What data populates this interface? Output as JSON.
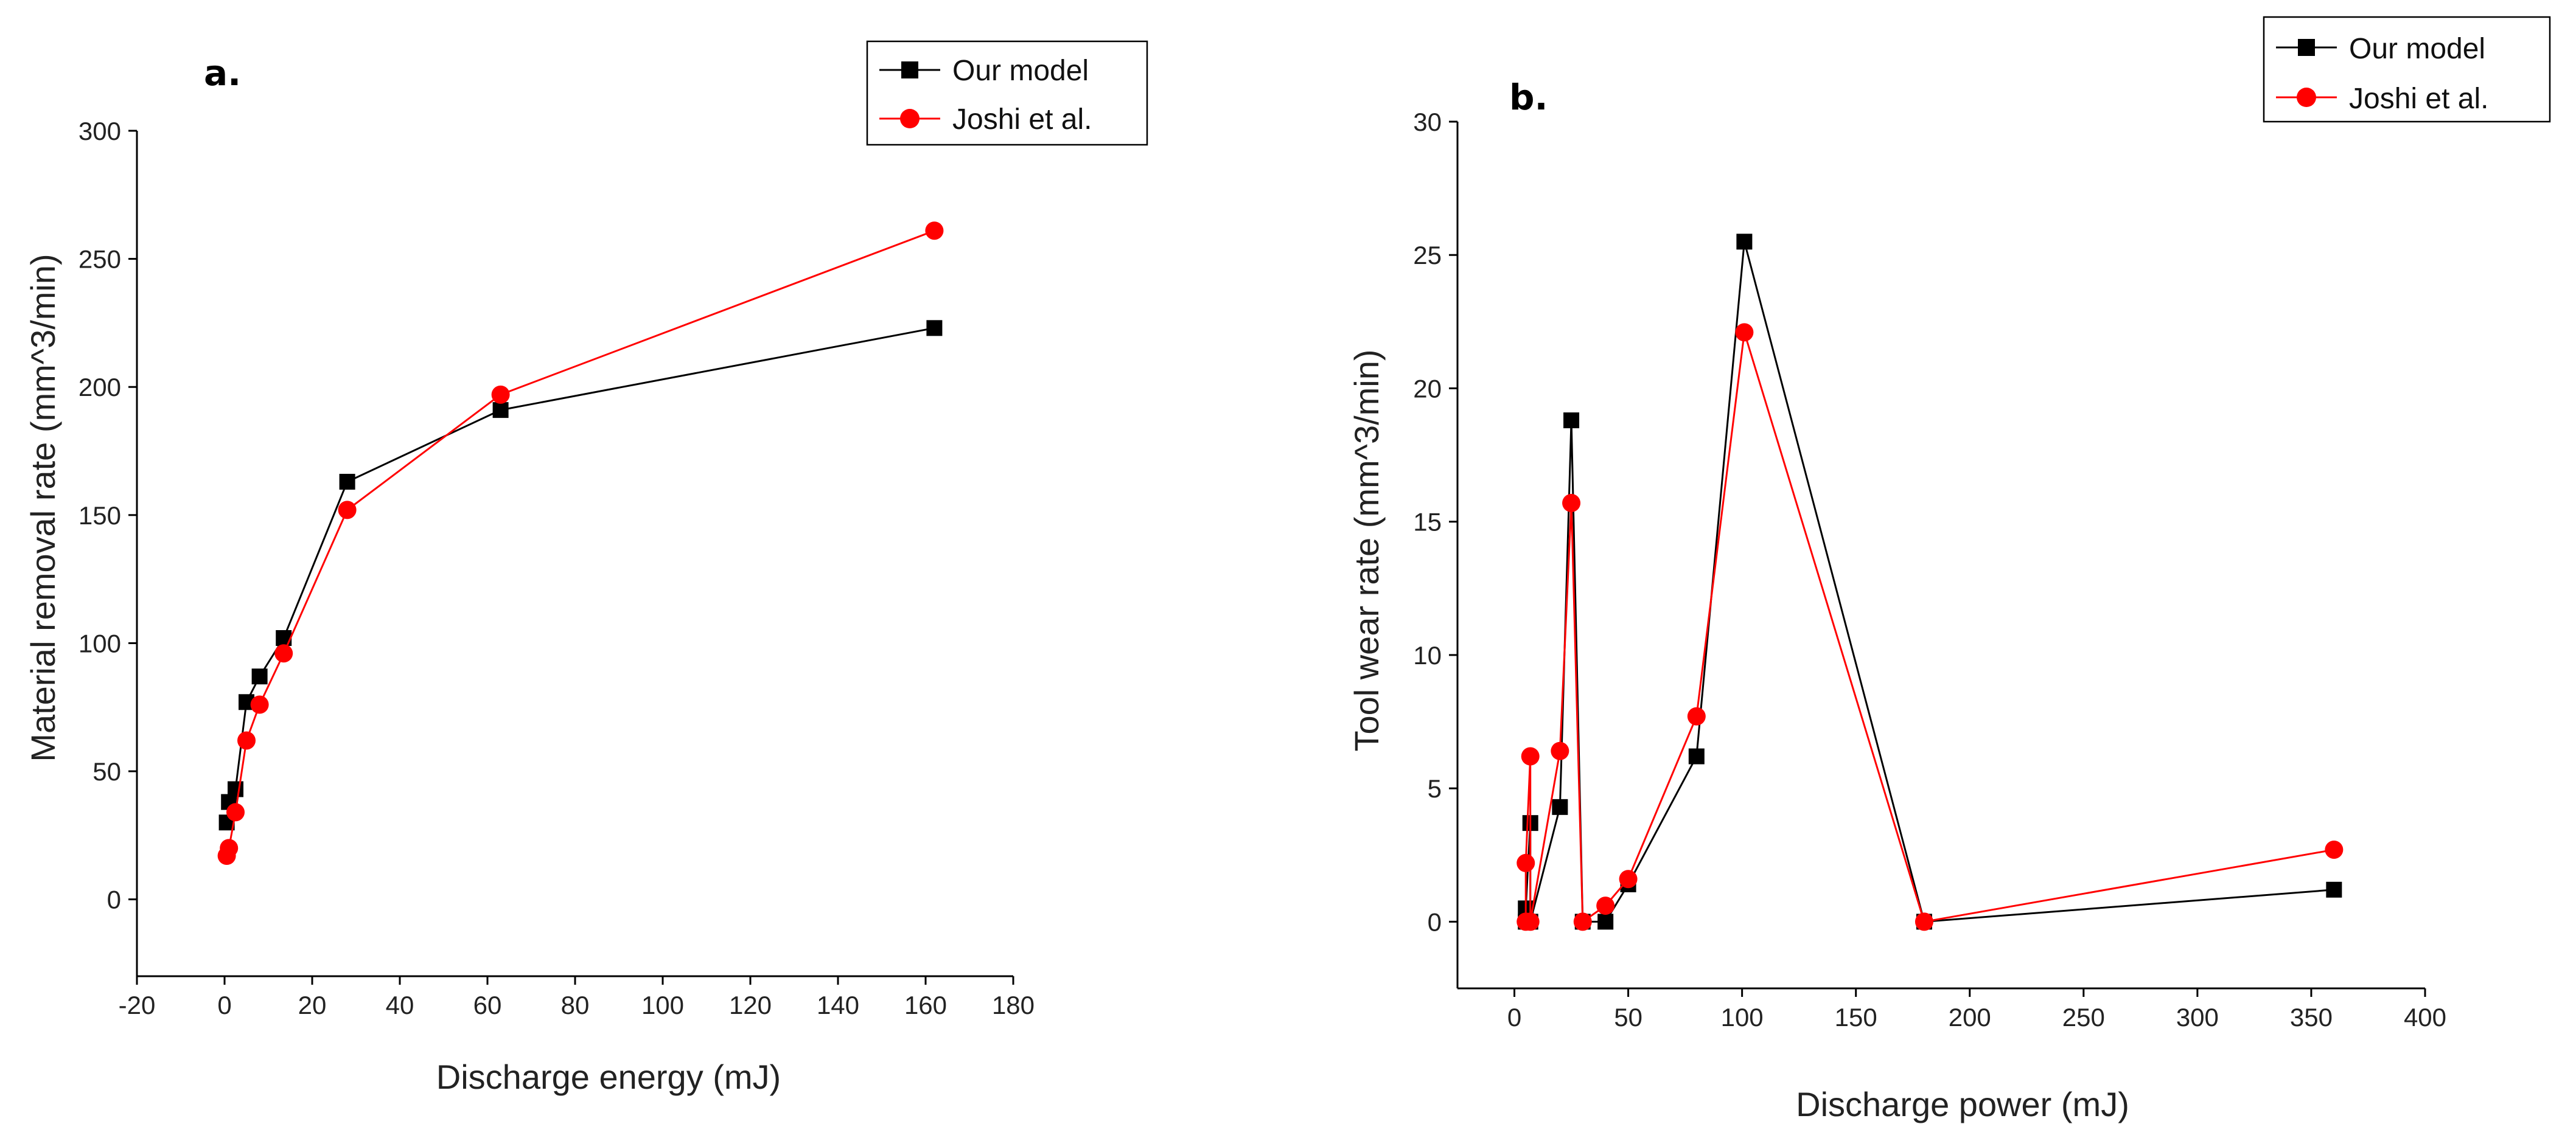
{
  "chart_data": [
    {
      "panel_label": "a.",
      "type": "line",
      "xlabel": "Discharge energy (mJ)",
      "ylabel": "Material removal rate (mm^3/min)",
      "xlim": [
        -20,
        180
      ],
      "ylim": [
        -30,
        300
      ],
      "xticks": [
        -20,
        0,
        20,
        40,
        60,
        80,
        100,
        120,
        140,
        160,
        180
      ],
      "yticks": [
        0,
        50,
        100,
        150,
        200,
        250,
        300
      ],
      "legend_position": "top-right",
      "series": [
        {
          "name": "Our model",
          "color": "#000000",
          "marker": "square",
          "x": [
            0.5,
            1,
            2.5,
            5,
            8,
            13.5,
            28,
            63,
            162
          ],
          "y": [
            30,
            38,
            43,
            77,
            87,
            102,
            163,
            191,
            223
          ]
        },
        {
          "name": "Joshi et al.",
          "color": "#ff0000",
          "marker": "circle",
          "x": [
            0.5,
            1,
            2.5,
            5,
            8,
            13.5,
            28,
            63,
            162
          ],
          "y": [
            17,
            20,
            34,
            62,
            76,
            96,
            152,
            197,
            261
          ]
        }
      ]
    },
    {
      "panel_label": "b.",
      "type": "line",
      "xlabel": "Discharge power (mJ)",
      "ylabel": "Tool wear rate (mm^3/min)",
      "xlim": [
        -25,
        400
      ],
      "ylim": [
        -2.5,
        30
      ],
      "xticks": [
        0,
        50,
        100,
        150,
        200,
        250,
        300,
        350,
        400
      ],
      "yticks": [
        0,
        5,
        10,
        15,
        20,
        25,
        30
      ],
      "legend_position": "top-right",
      "series": [
        {
          "name": "Our model",
          "color": "#000000",
          "marker": "square",
          "x": [
            5,
            5,
            7,
            7,
            20,
            25,
            30,
            40,
            50,
            80,
            101,
            180,
            360
          ],
          "y": [
            0,
            0.5,
            3.7,
            0,
            4.3,
            18.8,
            0,
            0,
            1.4,
            6.2,
            25.5,
            0,
            1.2
          ]
        },
        {
          "name": "Joshi et al.",
          "color": "#ff0000",
          "marker": "circle",
          "x": [
            5,
            5,
            7,
            7,
            20,
            25,
            30,
            40,
            50,
            80,
            101,
            180,
            360
          ],
          "y": [
            0,
            2.2,
            6.2,
            0,
            6.4,
            15.7,
            0,
            0.6,
            1.6,
            7.7,
            22.1,
            0,
            2.7
          ]
        }
      ]
    }
  ]
}
